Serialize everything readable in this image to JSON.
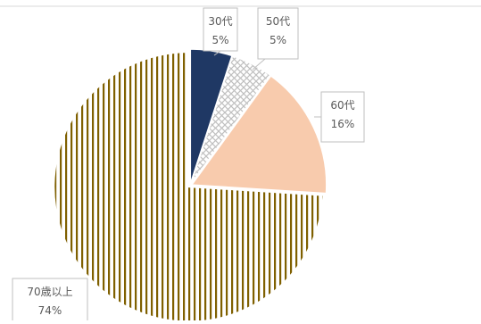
{
  "chart_data": {
    "type": "pie",
    "title": "",
    "slices": [
      {
        "label": "30代",
        "value": 5,
        "percent_label": "5%",
        "color": "#1f3864",
        "pattern": "solid"
      },
      {
        "label": "50代",
        "value": 5,
        "percent_label": "5%",
        "color": "#bfbfbf",
        "pattern": "crosshatch"
      },
      {
        "label": "60代",
        "value": 16,
        "percent_label": "16%",
        "color": "#f8cbad",
        "pattern": "solid"
      },
      {
        "label": "70歳以上",
        "value": 74,
        "percent_label": "74%",
        "color": "#7f6000",
        "pattern": "vertical-stripes"
      }
    ],
    "start_angle_deg": 0,
    "direction": "clockwise",
    "exploded": true,
    "data_labels": "callout",
    "legend": "none"
  }
}
